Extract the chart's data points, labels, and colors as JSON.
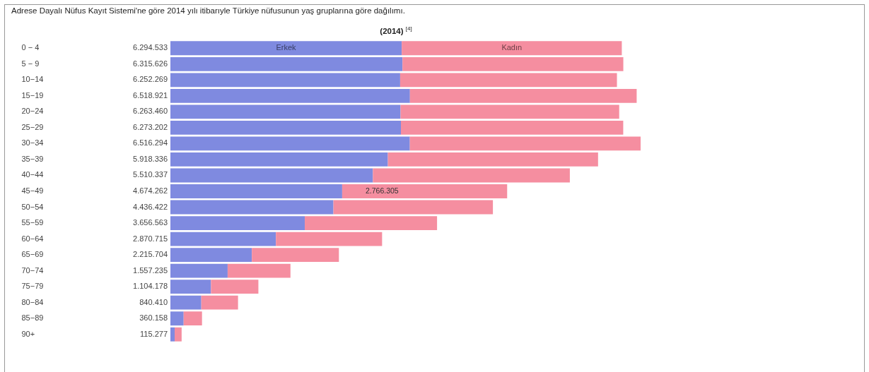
{
  "chart_data": {
    "type": "bar",
    "orientation": "horizontal",
    "stacked": true,
    "title": "Adrese Dayalı Nüfus Kayıt Sistemi'ne göre 2014 yılı itibarıyle Türkiye nüfusunun yaş gruplarına göre dağılımı.",
    "subtitle": "(2014) $^{[4]}$",
    "categories": [
      "0 − 4",
      "5 − 9",
      "10−14",
      "15−19",
      "20−24",
      "25−29",
      "30−34",
      "35−39",
      "40−44",
      "45−49",
      "50−54",
      "55−59",
      "60−64",
      "65−69",
      "70−74",
      "75−79",
      "80−84",
      "85−89",
      "90+"
    ],
    "series": [
      {
        "name": "Erkek",
        "color": "#7f8ae0",
        "values": [
          6294533,
          6315626,
          6252269,
          6518921,
          6263460,
          6273202,
          6516294,
          5918336,
          5510337,
          4674262,
          4436422,
          3656563,
          2870715,
          2215704,
          1557235,
          1104178,
          840410,
          360158,
          115277
        ],
        "value_labels": [
          "6.294.533",
          "6.315.626",
          "6.252.269",
          "6.518.921",
          "6.263.460",
          "6.273.202",
          "6.516.294",
          "5.918.336",
          "5.510.337",
          "4.674.262",
          "4.436.422",
          "3.656.563",
          "2.870.715",
          "2.215.704",
          "1.557.235",
          "1.104.178",
          "840.410",
          "360.158",
          "115.277"
        ]
      },
      {
        "name": "Kadın",
        "color": "#f58ea0",
        "values": [
          5990000,
          6010000,
          5900000,
          6170000,
          5950000,
          6050000,
          6280000,
          5720000,
          5360000,
          4490000,
          4340000,
          3600000,
          2890000,
          2370000,
          1710000,
          1290000,
          1000000,
          500000,
          190000
        ]
      }
    ],
    "annotations": [
      {
        "text": "2.766.305",
        "x": 5760000,
        "y": "45−49"
      }
    ]
  }
}
